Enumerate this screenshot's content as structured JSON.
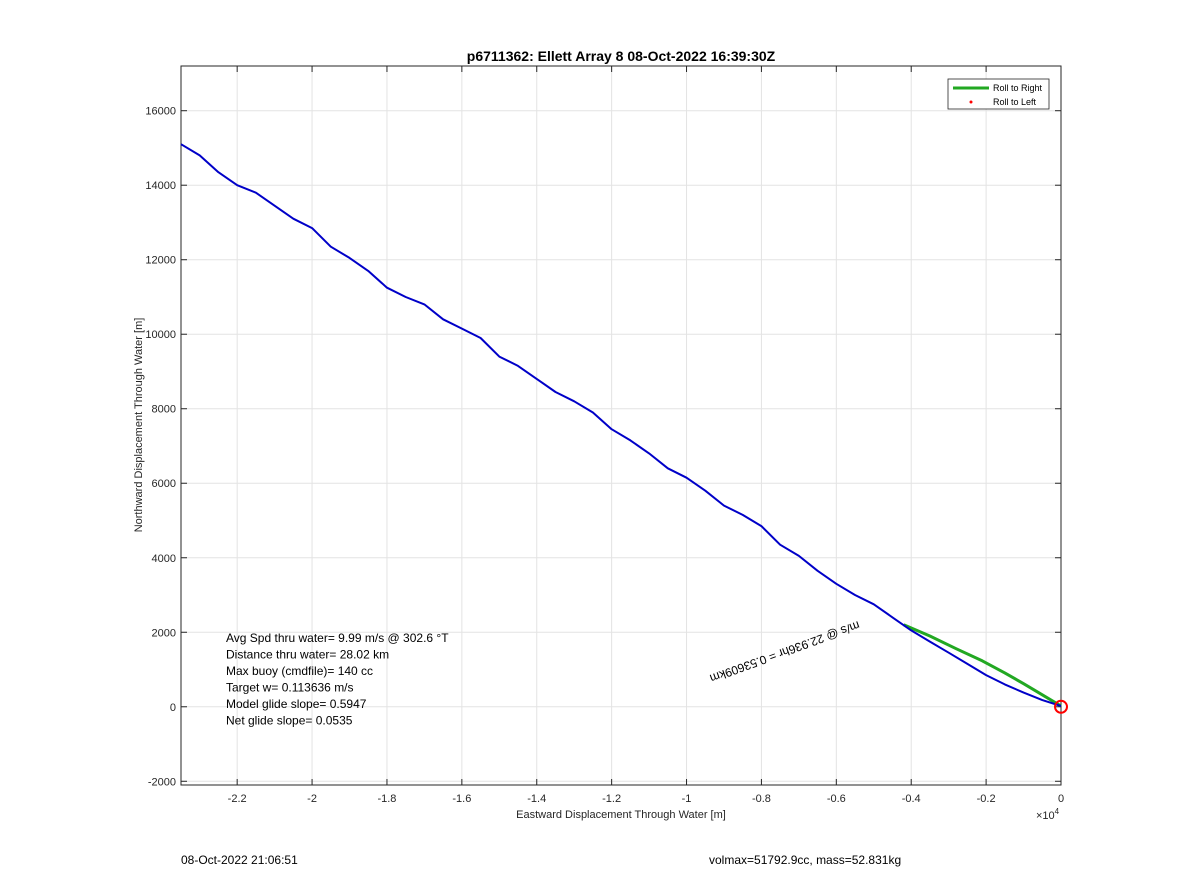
{
  "chart_data": {
    "type": "line",
    "title": "p6711362: Ellett Array 8 08-Oct-2022 16:39:30Z",
    "xlabel": "Eastward Displacement Through Water [m]",
    "ylabel": "Northward Displacement Through Water [m]",
    "x_multiplier": "×10",
    "x_exponent": "4",
    "xlim": [
      -23500,
      0
    ],
    "ylim": [
      -2100,
      17200
    ],
    "x_ticks": [
      -22000,
      -20000,
      -18000,
      -16000,
      -14000,
      -12000,
      -10000,
      -8000,
      -6000,
      -4000,
      -2000,
      0
    ],
    "x_tick_labels": [
      "-2.2",
      "-2",
      "-1.8",
      "-1.6",
      "-1.4",
      "-1.2",
      "-1",
      "-0.8",
      "-0.6",
      "-0.4",
      "-0.2",
      "0"
    ],
    "y_ticks": [
      -2000,
      0,
      2000,
      4000,
      6000,
      8000,
      10000,
      12000,
      14000,
      16000
    ],
    "y_tick_labels": [
      "-2000",
      "0",
      "2000",
      "4000",
      "6000",
      "8000",
      "10000",
      "12000",
      "14000",
      "16000"
    ],
    "grid": true,
    "legend_position": "top-right",
    "legend": [
      {
        "label": "Roll to Right",
        "color": "#22a822",
        "style": "line"
      },
      {
        "label": "Roll to Left",
        "color": "#ff0000",
        "style": "dot"
      }
    ],
    "series": [
      {
        "name": "Roll to Right",
        "color": "#22a822",
        "x": [
          -4200,
          -3500,
          -2800,
          -2100,
          -1500,
          -1000,
          -600,
          -300,
          -100,
          0
        ],
        "y": [
          2200,
          1900,
          1560,
          1230,
          910,
          620,
          380,
          200,
          80,
          20
        ]
      },
      {
        "color": "#0000c8",
        "x": [
          -23500,
          -23000,
          -22500,
          -22000,
          -21500,
          -21000,
          -20500,
          -20000,
          -19500,
          -19000,
          -18500,
          -18000,
          -17500,
          -17000,
          -16500,
          -16000,
          -15500,
          -15000,
          -14500,
          -14000,
          -13500,
          -13000,
          -12500,
          -12000,
          -11500,
          -11000,
          -10500,
          -10000,
          -9500,
          -9000,
          -8500,
          -8000,
          -7500,
          -7000,
          -6500,
          -6000,
          -5500,
          -5000,
          -4500,
          -4000,
          -3500,
          -3000,
          -2500,
          -2000,
          -1500,
          -1000,
          -500,
          0
        ],
        "y": [
          15100,
          14800,
          14350,
          14000,
          13800,
          13450,
          13100,
          12850,
          12350,
          12050,
          11700,
          11250,
          11000,
          10800,
          10400,
          10150,
          9900,
          9400,
          9150,
          8800,
          8450,
          8200,
          7900,
          7450,
          7150,
          6800,
          6400,
          6150,
          5800,
          5400,
          5150,
          4850,
          4350,
          4050,
          3650,
          3300,
          3000,
          2750,
          2400,
          2050,
          1750,
          1450,
          1150,
          850,
          600,
          380,
          180,
          20
        ]
      }
    ],
    "markers": [
      {
        "x": 0,
        "y": 0,
        "color": "#ff0000",
        "shape": "circle"
      }
    ],
    "annotation_lines": [
      "Avg Spd thru water=  9.99 m/s @ 302.6 °T",
      "Distance thru water= 28.02 km",
      "Max buoy (cmdfile)= 140 cc",
      "Target w= 0.113636 m/s",
      "Model glide slope= 0.5947",
      "Net glide slope= 0.0535"
    ],
    "rotated_note": "m/s @ 22.936hr = 0.53609km"
  },
  "footer": {
    "left": "08-Oct-2022 21:06:51",
    "right": "volmax=51792.9cc, mass=52.831kg"
  }
}
